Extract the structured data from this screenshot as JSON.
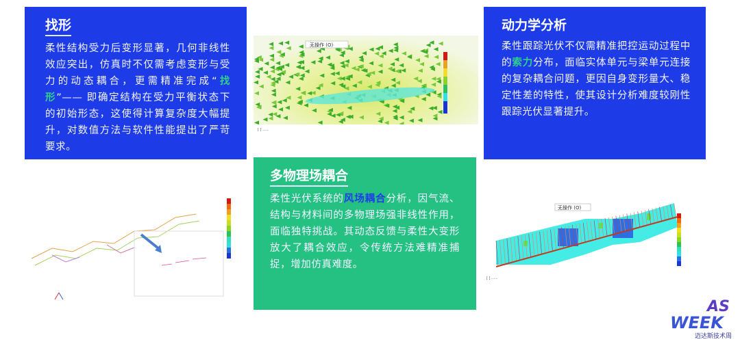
{
  "cards": {
    "form_finding": {
      "title": "找形",
      "text_before": "柔性结构受力后变形显著，几何非线性效应突出，仿真时不仅需考虑变形与受力的动态耦合，更需精准完成“",
      "highlight": "找形",
      "text_after": "”—— 即确定结构在受力平衡状态下的初始形态，这使得计算复杂度大幅提升，对数值方法与软件性能提出了严苛要求。",
      "bg_color": "#1d3be6",
      "highlight_color": "#2fd28c"
    },
    "dynamics": {
      "title": "动力学分析",
      "text_before": "柔性跟踪光伏不仅需精准把控运动过程中的",
      "highlight": "索力",
      "text_after": "分布，面临实体单元与梁单元连接的复杂耦合问题，更因自身变形量大、稳定性差的特性，使其设计分析难度较刚性跟踪光伏显著提升。",
      "bg_color": "#1d3be6",
      "highlight_color": "#2fd28c"
    },
    "multiphysics": {
      "title": "多物理场耦合",
      "text_before": "柔性光伏系统的",
      "highlight": "风场耦合",
      "text_after": "分析，因气流、结构与材料间的多物理场强非线性作用，面临独特挑战。其动态反馈与柔性大变形放大了耦合效应，令传统方法难精准捕捉，增加仿真难度。",
      "bg_color": "#24c182",
      "highlight_color": "#1f3de8"
    }
  },
  "screenshots": {
    "wind_field": {
      "dropdown": "无操作 (O)"
    },
    "tracker_model": {
      "dropdown": "无操作 (O)"
    }
  },
  "logo": {
    "text": "AS WEEK",
    "subtitle": "迈达斯技术周"
  }
}
